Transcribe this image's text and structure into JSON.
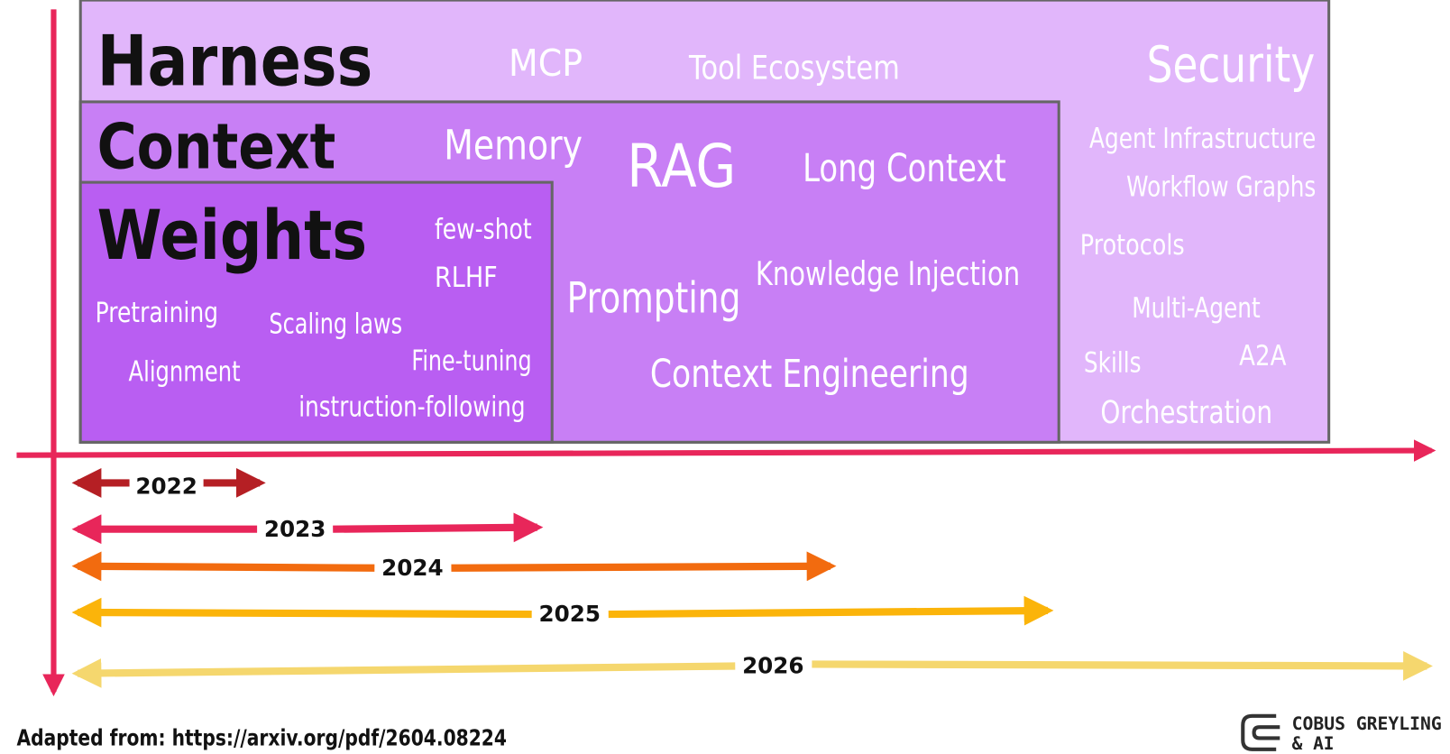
{
  "harness": {
    "title": "Harness",
    "terms": [
      "MCP",
      "Tool Ecosystem",
      "Security",
      "Agent Infrastructure",
      "Workflow Graphs",
      "Protocols",
      "Multi-Agent",
      "Skills",
      "A2A",
      "Orchestration"
    ]
  },
  "context": {
    "title": "Context",
    "terms": [
      "Memory",
      "RAG",
      "Long Context",
      "Prompting",
      "Knowledge Injection",
      "Context Engineering"
    ]
  },
  "weights": {
    "title": "Weights",
    "terms": [
      "few-shot",
      "RLHF",
      "Pretraining",
      "Scaling laws",
      "Alignment",
      "Fine-tuning",
      "instruction-following"
    ]
  },
  "timeline": [
    "2022",
    "2023",
    "2024",
    "2025",
    "2026"
  ],
  "footer": {
    "source": "Adapted from: https://arxiv.org/pdf/2604.08224",
    "brand_line1": "COBUS GREYLING",
    "brand_line2": "& AI"
  }
}
